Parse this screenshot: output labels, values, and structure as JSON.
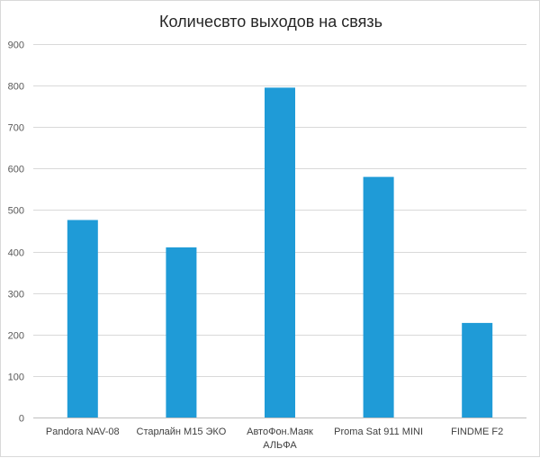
{
  "chart_data": {
    "type": "bar",
    "title": "Количесвто выходов на связь",
    "xlabel": "",
    "ylabel": "",
    "ylim": [
      0,
      900
    ],
    "yticks": [
      0,
      100,
      200,
      300,
      400,
      500,
      600,
      700,
      800,
      900
    ],
    "grid": true,
    "legend": "none",
    "categories": [
      [
        "Pandora NAV-08"
      ],
      [
        "Старлайн М15 ЭКО"
      ],
      [
        "АвтоФон.Маяк",
        "АЛЬФА"
      ],
      [
        "Proma Sat 911 MINI"
      ],
      [
        "FINDME F2"
      ]
    ],
    "values": [
      476,
      410,
      795,
      580,
      228
    ],
    "bar_color": "#1f9bd7"
  }
}
